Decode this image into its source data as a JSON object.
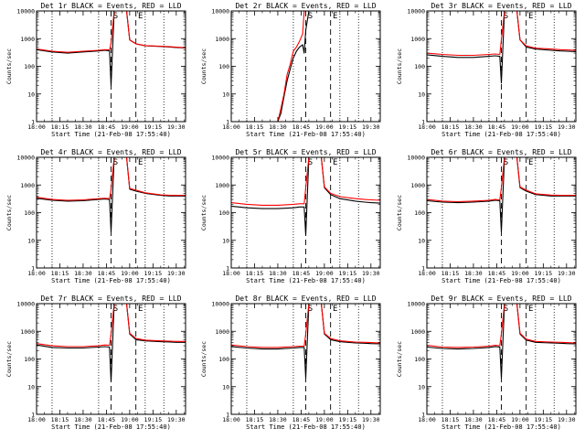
{
  "figure": {
    "time_zero": "18:00",
    "x_ticks": [
      "18:00",
      "18:15",
      "18:30",
      "18:45",
      "19:00",
      "19:15",
      "19:30"
    ],
    "xlabel": "Start Time (21-Feb-08 17:55:40)",
    "ylabel": "Counts/sec",
    "y_ticks": [
      "1",
      "10",
      "100",
      "1000",
      "10000"
    ],
    "event_markers": [
      {
        "label": "S",
        "minute": 48
      },
      {
        "label": "E",
        "minute": 64
      }
    ],
    "dotted_lines_minutes": [
      10,
      40,
      70,
      82
    ],
    "dashed_lines_minutes": [
      48,
      64
    ],
    "colors": {
      "events": "#000000",
      "lld": "#ff0000",
      "axes": "#000000"
    }
  },
  "chart_data": [
    {
      "type": "line",
      "title": "Det 1r BLACK = Events, RED = LLD",
      "xlim": [
        0,
        96
      ],
      "ylim": [
        1,
        10000
      ],
      "ylog": true,
      "x_minutes": [
        0,
        10,
        20,
        30,
        40,
        44,
        47,
        48,
        50,
        54,
        56,
        57,
        58,
        60,
        64,
        70,
        80,
        86,
        90,
        96
      ],
      "series": [
        {
          "name": "Events",
          "values": [
            400,
            330,
            300,
            330,
            360,
            380,
            360,
            20,
            10000,
            10000,
            10000,
            10000,
            10000,
            900,
            650,
            550,
            520,
            500,
            480,
            460
          ]
        },
        {
          "name": "LLD",
          "values": [
            420,
            350,
            320,
            350,
            380,
            400,
            390,
            700,
            10000,
            10000,
            10000,
            10000,
            10000,
            900,
            650,
            560,
            530,
            510,
            490,
            470
          ]
        }
      ]
    },
    {
      "type": "line",
      "title": "Det 2r BLACK = Events, RED = LLD",
      "xlim": [
        0,
        96
      ],
      "ylim": [
        1,
        10000
      ],
      "ylog": true,
      "x_minutes": [
        0,
        10,
        20,
        30,
        32,
        34,
        36,
        38,
        40,
        42,
        44,
        46,
        47,
        48,
        50,
        54,
        56,
        57,
        58,
        60,
        64,
        70,
        80,
        86,
        90,
        96
      ],
      "series": [
        {
          "name": "Events",
          "values": [
            1,
            1,
            1,
            1,
            2,
            8,
            30,
            80,
            200,
            350,
            500,
            600,
            300,
            2000,
            10000,
            10000,
            10000,
            10000,
            10000,
            null,
            null,
            null,
            null,
            null,
            null,
            null
          ]
        },
        {
          "name": "LLD",
          "values": [
            1,
            1,
            1,
            1,
            3,
            10,
            50,
            120,
            350,
            500,
            800,
            1500,
            10000,
            10000,
            10000,
            10000,
            10000,
            10000,
            10000,
            null,
            null,
            null,
            null,
            null,
            null,
            null
          ]
        }
      ]
    },
    {
      "type": "line",
      "title": "Det 3r BLACK = Events, RED = LLD",
      "xlim": [
        0,
        96
      ],
      "ylim": [
        1,
        10000
      ],
      "ylog": true,
      "x_minutes": [
        0,
        10,
        20,
        30,
        40,
        44,
        47,
        48,
        50,
        54,
        56,
        57,
        58,
        60,
        64,
        70,
        80,
        86,
        90,
        96
      ],
      "series": [
        {
          "name": "Events",
          "values": [
            260,
            230,
            210,
            210,
            230,
            240,
            230,
            25,
            10000,
            10000,
            10000,
            10000,
            10000,
            900,
            500,
            420,
            380,
            360,
            350,
            340
          ]
        },
        {
          "name": "LLD",
          "values": [
            300,
            270,
            250,
            250,
            270,
            280,
            270,
            900,
            10000,
            10000,
            10000,
            10000,
            10000,
            900,
            550,
            450,
            420,
            400,
            390,
            380
          ]
        }
      ]
    },
    {
      "type": "line",
      "title": "Det 4r BLACK = Events, RED = LLD",
      "xlim": [
        0,
        96
      ],
      "ylim": [
        1,
        10000
      ],
      "ylog": true,
      "x_minutes": [
        0,
        10,
        20,
        30,
        40,
        44,
        47,
        48,
        50,
        54,
        56,
        57,
        58,
        60,
        64,
        70,
        80,
        86,
        90,
        96
      ],
      "series": [
        {
          "name": "Events",
          "values": [
            330,
            280,
            260,
            270,
            300,
            310,
            300,
            20,
            10000,
            10000,
            10000,
            10000,
            10000,
            700,
            600,
            500,
            420,
            400,
            400,
            400
          ]
        },
        {
          "name": "LLD",
          "values": [
            360,
            300,
            280,
            290,
            320,
            330,
            320,
            700,
            10000,
            10000,
            10000,
            10000,
            10000,
            750,
            650,
            520,
            440,
            420,
            420,
            420
          ]
        }
      ]
    },
    {
      "type": "line",
      "title": "Det 5r BLACK = Events, RED = LLD",
      "xlim": [
        0,
        96
      ],
      "ylim": [
        1,
        10000
      ],
      "ylog": true,
      "x_minutes": [
        0,
        10,
        20,
        30,
        40,
        44,
        47,
        48,
        50,
        54,
        56,
        57,
        58,
        60,
        64,
        70,
        80,
        86,
        90,
        96
      ],
      "series": [
        {
          "name": "Events",
          "values": [
            170,
            150,
            140,
            140,
            150,
            160,
            160,
            15,
            10000,
            10000,
            10000,
            10000,
            10000,
            800,
            450,
            320,
            260,
            240,
            230,
            220
          ]
        },
        {
          "name": "LLD",
          "values": [
            230,
            200,
            185,
            185,
            200,
            210,
            210,
            800,
            10000,
            10000,
            10000,
            10000,
            10000,
            850,
            500,
            380,
            320,
            300,
            290,
            280
          ]
        }
      ]
    },
    {
      "type": "line",
      "title": "Det 6r BLACK = Events, RED = LLD",
      "xlim": [
        0,
        96
      ],
      "ylim": [
        1,
        10000
      ],
      "ylog": true,
      "x_minutes": [
        0,
        10,
        20,
        30,
        40,
        44,
        47,
        48,
        50,
        54,
        56,
        57,
        58,
        60,
        64,
        70,
        80,
        86,
        90,
        96
      ],
      "series": [
        {
          "name": "Events",
          "values": [
            270,
            240,
            230,
            240,
            260,
            280,
            270,
            20,
            10000,
            10000,
            10000,
            10000,
            10000,
            800,
            600,
            450,
            400,
            400,
            400,
            400
          ]
        },
        {
          "name": "LLD",
          "values": [
            300,
            260,
            250,
            260,
            280,
            300,
            290,
            800,
            10000,
            10000,
            10000,
            10000,
            10000,
            850,
            650,
            480,
            430,
            420,
            420,
            420
          ]
        }
      ]
    },
    {
      "type": "line",
      "title": "Det 7r BLACK = Events, RED = LLD",
      "xlim": [
        0,
        96
      ],
      "ylim": [
        1,
        10000
      ],
      "ylog": true,
      "x_minutes": [
        0,
        10,
        20,
        30,
        40,
        44,
        47,
        48,
        50,
        54,
        56,
        57,
        58,
        60,
        64,
        70,
        80,
        86,
        90,
        96
      ],
      "series": [
        {
          "name": "Events",
          "values": [
            320,
            260,
            250,
            250,
            270,
            280,
            270,
            15,
            10000,
            10000,
            10000,
            10000,
            10000,
            800,
            500,
            450,
            420,
            410,
            400,
            400
          ]
        },
        {
          "name": "LLD",
          "values": [
            360,
            300,
            280,
            280,
            300,
            320,
            310,
            800,
            10000,
            10000,
            10000,
            10000,
            10000,
            850,
            550,
            480,
            450,
            440,
            430,
            430
          ]
        }
      ]
    },
    {
      "type": "line",
      "title": "Det 8r BLACK = Events, RED = LLD",
      "xlim": [
        0,
        96
      ],
      "ylim": [
        1,
        10000
      ],
      "ylog": true,
      "x_minutes": [
        0,
        10,
        20,
        30,
        40,
        44,
        47,
        48,
        50,
        54,
        56,
        57,
        58,
        60,
        64,
        70,
        80,
        86,
        90,
        96
      ],
      "series": [
        {
          "name": "Events",
          "values": [
            280,
            250,
            230,
            230,
            250,
            260,
            260,
            20,
            10000,
            10000,
            10000,
            10000,
            10000,
            800,
            500,
            420,
            380,
            370,
            360,
            350
          ]
        },
        {
          "name": "LLD",
          "values": [
            320,
            280,
            260,
            260,
            280,
            290,
            290,
            800,
            10000,
            10000,
            10000,
            10000,
            10000,
            850,
            550,
            450,
            410,
            400,
            390,
            380
          ]
        }
      ]
    },
    {
      "type": "line",
      "title": "Det 9r BLACK = Events, RED = LLD",
      "xlim": [
        0,
        96
      ],
      "ylim": [
        1,
        10000
      ],
      "ylog": true,
      "x_minutes": [
        0,
        10,
        20,
        30,
        40,
        44,
        47,
        48,
        50,
        54,
        56,
        57,
        58,
        60,
        64,
        70,
        80,
        86,
        90,
        96
      ],
      "series": [
        {
          "name": "Events",
          "values": [
            270,
            240,
            230,
            240,
            260,
            280,
            270,
            20,
            10000,
            10000,
            10000,
            10000,
            10000,
            800,
            480,
            400,
            380,
            370,
            360,
            350
          ]
        },
        {
          "name": "LLD",
          "values": [
            310,
            270,
            260,
            270,
            290,
            310,
            300,
            800,
            10000,
            10000,
            10000,
            10000,
            10000,
            850,
            520,
            430,
            410,
            400,
            390,
            380
          ]
        }
      ]
    }
  ]
}
